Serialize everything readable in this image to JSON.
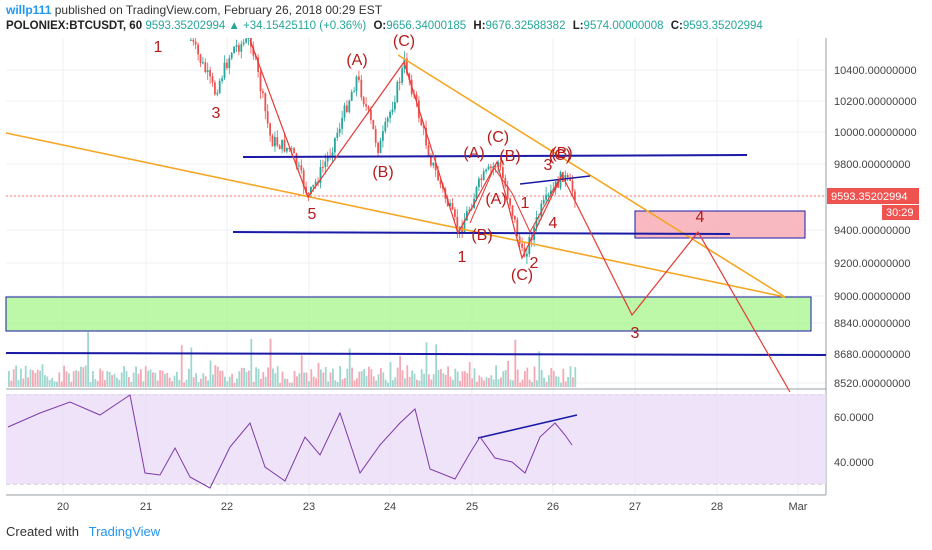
{
  "header": {
    "user": "willp111",
    "published": "published on TradingView.com, February 26, 2018 00:29 EST",
    "symbol": "POLONIEX:BTCUSDT, 60",
    "last": "9593.35202994",
    "change": "▲ +34.15425110 (+0.36%)",
    "o_label": "O:",
    "o": "9656.34000185",
    "h_label": "H:",
    "h": "9676.32588382",
    "l_label": "L:",
    "l": "9574.00000008",
    "c_label": "C:",
    "c": "9593.35202994"
  },
  "footer": {
    "created": "Created with",
    "brand": "TradingView"
  },
  "chart_data": {
    "type": "line",
    "price_axis": {
      "ticks": [
        "10400.00000000",
        "10200.00000000",
        "10000.00000000",
        "9800.00000000",
        "9600.00000000",
        "9400.00000000",
        "9200.00000000",
        "9000.00000000",
        "8840.00000000",
        "8680.00000000",
        "8520.00000000"
      ],
      "last_price_label": "9593.35202994",
      "countdown": "30:29"
    },
    "rsi_axis": {
      "ticks": [
        "60.0000",
        "40.0000"
      ]
    },
    "x_ticks": [
      "20",
      "21",
      "22",
      "23",
      "24",
      "25",
      "26",
      "27",
      "28",
      "Mar"
    ],
    "wave_labels": [
      "1",
      "3",
      "5",
      "(A)",
      "(B)",
      "(C)",
      "(A)",
      "(B)",
      "(C)",
      "(A)",
      "(B)",
      "(C)",
      "1",
      "2",
      "3",
      "4",
      "(B)",
      "(C)",
      "1",
      "3",
      "4",
      "(A)",
      "(B)"
    ],
    "projection_labels": [
      "4",
      "3"
    ],
    "colors": {
      "up": "#26a69a",
      "down": "#ef5350",
      "wave": "#b71c1c",
      "trend": "#f5a623",
      "level": "#1a1aa6",
      "rsi": "#7e3ba8"
    }
  }
}
